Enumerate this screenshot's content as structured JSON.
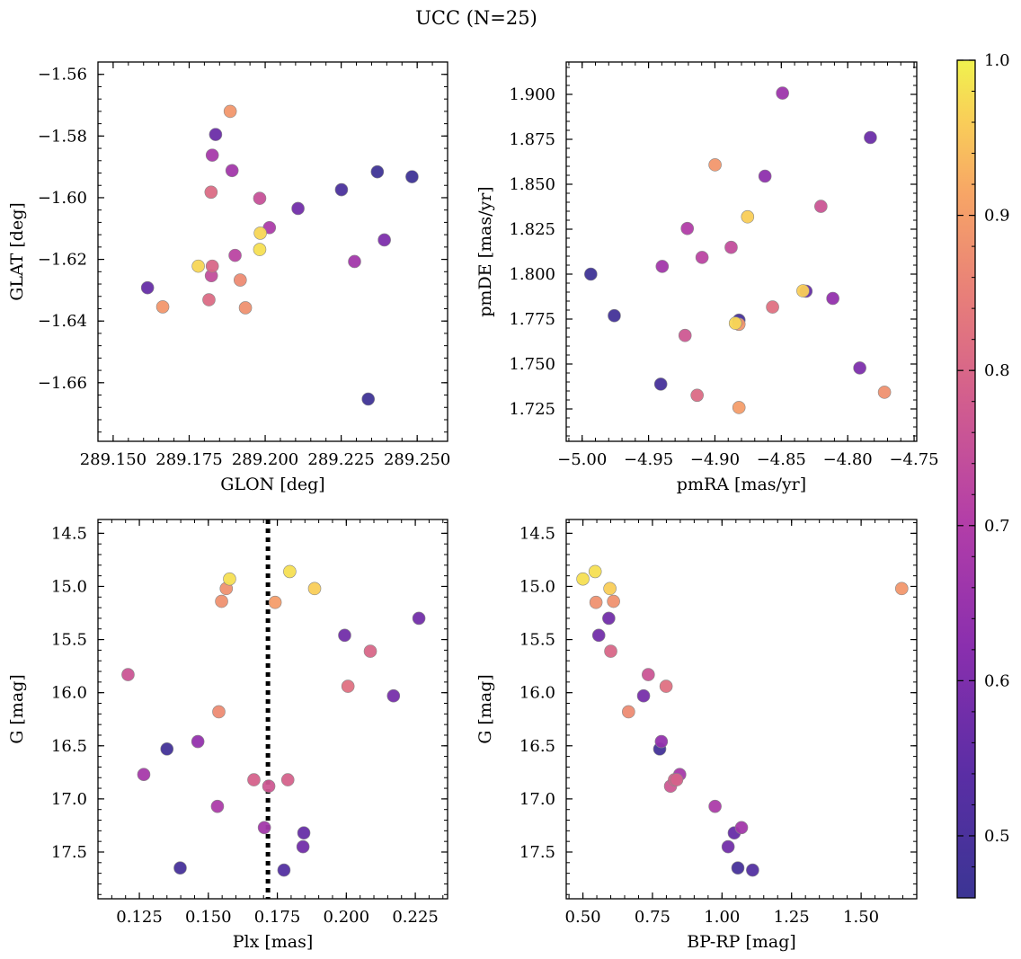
{
  "title": "UCC (N=25)",
  "colorbar": {
    "range": [
      0.46,
      1.0
    ],
    "ticks": [
      0.5,
      0.6,
      0.7,
      0.8,
      0.9,
      1.0
    ],
    "tick_labels": [
      "0.5",
      "0.6",
      "0.7",
      "0.8",
      "0.9",
      "1.0"
    ],
    "colormap": "plasma"
  },
  "chart_data": [
    {
      "type": "scatter",
      "xlabel": "GLON [deg]",
      "ylabel": "GLAT [deg]",
      "xlim": [
        289.145,
        289.26
      ],
      "ylim": [
        -1.679,
        -1.556
      ],
      "x_ticks": [
        289.15,
        289.175,
        289.2,
        289.225,
        289.25
      ],
      "x_tick_labels": [
        "289.150",
        "289.175",
        "289.200",
        "289.225",
        "289.250"
      ],
      "y_ticks": [
        -1.56,
        -1.58,
        -1.6,
        -1.62,
        -1.64,
        -1.66
      ],
      "y_tick_labels": [
        "−1.56",
        "−1.58",
        "−1.60",
        "−1.62",
        "−1.64",
        "−1.66"
      ],
      "points": [
        {
          "x": 289.1885,
          "y": -1.572,
          "c": 0.89
        },
        {
          "x": 289.1837,
          "y": -1.5795,
          "c": 0.57
        },
        {
          "x": 289.1826,
          "y": -1.5862,
          "c": 0.68
        },
        {
          "x": 289.1891,
          "y": -1.5912,
          "c": 0.67
        },
        {
          "x": 289.1822,
          "y": -1.5982,
          "c": 0.81
        },
        {
          "x": 289.1982,
          "y": -1.6002,
          "c": 0.75
        },
        {
          "x": 289.2108,
          "y": -1.6035,
          "c": 0.58
        },
        {
          "x": 289.2251,
          "y": -1.5974,
          "c": 0.5
        },
        {
          "x": 289.2369,
          "y": -1.5916,
          "c": 0.47
        },
        {
          "x": 289.2483,
          "y": -1.5932,
          "c": 0.47
        },
        {
          "x": 289.2014,
          "y": -1.6097,
          "c": 0.69
        },
        {
          "x": 289.1984,
          "y": -1.6115,
          "c": 0.97
        },
        {
          "x": 289.1982,
          "y": -1.6168,
          "c": 0.98
        },
        {
          "x": 289.2392,
          "y": -1.6137,
          "c": 0.6
        },
        {
          "x": 289.1901,
          "y": -1.6187,
          "c": 0.72
        },
        {
          "x": 289.2294,
          "y": -1.6207,
          "c": 0.67
        },
        {
          "x": 289.178,
          "y": -1.6222,
          "c": 0.97
        },
        {
          "x": 289.1826,
          "y": -1.6222,
          "c": 0.8
        },
        {
          "x": 289.1823,
          "y": -1.6253,
          "c": 0.74
        },
        {
          "x": 289.1918,
          "y": -1.6267,
          "c": 0.87
        },
        {
          "x": 289.1613,
          "y": -1.6292,
          "c": 0.56
        },
        {
          "x": 289.1815,
          "y": -1.6331,
          "c": 0.81
        },
        {
          "x": 289.1663,
          "y": -1.6354,
          "c": 0.89
        },
        {
          "x": 289.1935,
          "y": -1.6357,
          "c": 0.88
        },
        {
          "x": 289.2339,
          "y": -1.6653,
          "c": 0.47
        }
      ]
    },
    {
      "type": "scatter",
      "xlabel": "pmRA [mas/yr]",
      "ylabel": "pmDE [mas/yr]",
      "xlim": [
        -5.012,
        -4.748
      ],
      "ylim": [
        1.707,
        1.918
      ],
      "x_ticks": [
        -5.0,
        -4.95,
        -4.9,
        -4.85,
        -4.8,
        -4.75
      ],
      "x_tick_labels": [
        "−5.00",
        "−4.95",
        "−4.90",
        "−4.85",
        "−4.80",
        "−4.75"
      ],
      "y_ticks": [
        1.725,
        1.75,
        1.775,
        1.8,
        1.825,
        1.85,
        1.875,
        1.9
      ],
      "y_tick_labels": [
        "1.725",
        "1.750",
        "1.775",
        "1.800",
        "1.825",
        "1.850",
        "1.875",
        "1.900"
      ],
      "points": [
        {
          "x": -4.8491,
          "y": 1.9007,
          "c": 0.66
        },
        {
          "x": -4.7829,
          "y": 1.876,
          "c": 0.57
        },
        {
          "x": -4.8999,
          "y": 1.8608,
          "c": 0.89
        },
        {
          "x": -4.8623,
          "y": 1.8545,
          "c": 0.63
        },
        {
          "x": -4.8202,
          "y": 1.8377,
          "c": 0.76
        },
        {
          "x": -4.8754,
          "y": 1.8319,
          "c": 0.96
        },
        {
          "x": -4.9208,
          "y": 1.8254,
          "c": 0.7
        },
        {
          "x": -4.8878,
          "y": 1.8149,
          "c": 0.74
        },
        {
          "x": -4.9097,
          "y": 1.8093,
          "c": 0.72
        },
        {
          "x": -4.9397,
          "y": 1.8043,
          "c": 0.67
        },
        {
          "x": -4.9935,
          "y": 1.8,
          "c": 0.47
        },
        {
          "x": -4.8314,
          "y": 1.7905,
          "c": 0.56
        },
        {
          "x": -4.8337,
          "y": 1.7907,
          "c": 0.96
        },
        {
          "x": -4.8112,
          "y": 1.7865,
          "c": 0.64
        },
        {
          "x": -4.8566,
          "y": 1.7817,
          "c": 0.82
        },
        {
          "x": -4.9758,
          "y": 1.7769,
          "c": 0.48
        },
        {
          "x": -4.8819,
          "y": 1.7744,
          "c": 0.49
        },
        {
          "x": -4.8819,
          "y": 1.7721,
          "c": 0.89
        },
        {
          "x": -4.8846,
          "y": 1.7727,
          "c": 0.97
        },
        {
          "x": -4.9225,
          "y": 1.7659,
          "c": 0.77
        },
        {
          "x": -4.7909,
          "y": 1.7478,
          "c": 0.6
        },
        {
          "x": -4.9408,
          "y": 1.7388,
          "c": 0.49
        },
        {
          "x": -4.7723,
          "y": 1.7343,
          "c": 0.88
        },
        {
          "x": -4.9134,
          "y": 1.7326,
          "c": 0.81
        },
        {
          "x": -4.8819,
          "y": 1.7258,
          "c": 0.9
        }
      ]
    },
    {
      "type": "scatter",
      "xlabel": "Plx [mas]",
      "ylabel": "G [mag]",
      "xlim": [
        0.11,
        0.2367
      ],
      "ylim": [
        17.94,
        14.37
      ],
      "y_inverted": true,
      "x_ticks": [
        0.125,
        0.15,
        0.175,
        0.2,
        0.225
      ],
      "x_tick_labels": [
        "0.125",
        "0.150",
        "0.175",
        "0.200",
        "0.225"
      ],
      "y_ticks": [
        14.5,
        15.0,
        15.5,
        16.0,
        16.5,
        17.0,
        17.5
      ],
      "y_tick_labels": [
        "14.5",
        "15.0",
        "15.5",
        "16.0",
        "16.5",
        "17.0",
        "17.5"
      ],
      "vline": {
        "x": 0.1716,
        "style": "dotted",
        "color": "#000000"
      },
      "points": [
        {
          "x": 0.1795,
          "y": 14.86,
          "c": 0.98
        },
        {
          "x": 0.1577,
          "y": 14.93,
          "c": 0.98
        },
        {
          "x": 0.1885,
          "y": 15.02,
          "c": 0.96
        },
        {
          "x": 0.1565,
          "y": 15.02,
          "c": 0.88
        },
        {
          "x": 0.1548,
          "y": 15.14,
          "c": 0.88
        },
        {
          "x": 0.1742,
          "y": 15.15,
          "c": 0.9
        },
        {
          "x": 0.2263,
          "y": 15.3,
          "c": 0.58
        },
        {
          "x": 0.1994,
          "y": 15.46,
          "c": 0.58
        },
        {
          "x": 0.2087,
          "y": 15.61,
          "c": 0.8
        },
        {
          "x": 0.1209,
          "y": 15.83,
          "c": 0.76
        },
        {
          "x": 0.2006,
          "y": 15.94,
          "c": 0.82
        },
        {
          "x": 0.2171,
          "y": 16.03,
          "c": 0.59
        },
        {
          "x": 0.1538,
          "y": 16.18,
          "c": 0.87
        },
        {
          "x": 0.1462,
          "y": 16.46,
          "c": 0.64
        },
        {
          "x": 0.135,
          "y": 16.53,
          "c": 0.48
        },
        {
          "x": 0.1266,
          "y": 16.77,
          "c": 0.68
        },
        {
          "x": 0.1665,
          "y": 16.82,
          "c": 0.79
        },
        {
          "x": 0.1788,
          "y": 16.82,
          "c": 0.79
        },
        {
          "x": 0.1719,
          "y": 16.88,
          "c": 0.77
        },
        {
          "x": 0.1533,
          "y": 17.07,
          "c": 0.69
        },
        {
          "x": 0.1703,
          "y": 17.27,
          "c": 0.67
        },
        {
          "x": 0.1846,
          "y": 17.32,
          "c": 0.56
        },
        {
          "x": 0.1843,
          "y": 17.45,
          "c": 0.58
        },
        {
          "x": 0.1398,
          "y": 17.65,
          "c": 0.49
        },
        {
          "x": 0.1774,
          "y": 17.67,
          "c": 0.52
        }
      ]
    },
    {
      "type": "scatter",
      "xlabel": "BP-RP [mag]",
      "ylabel": "G [mag]",
      "xlim": [
        0.44,
        1.7
      ],
      "ylim": [
        17.94,
        14.37
      ],
      "y_inverted": true,
      "x_ticks": [
        0.5,
        0.75,
        1.0,
        1.25,
        1.5
      ],
      "x_tick_labels": [
        "0.50",
        "0.75",
        "1.00",
        "1.25",
        "1.50"
      ],
      "y_ticks": [
        14.5,
        15.0,
        15.5,
        16.0,
        16.5,
        17.0,
        17.5
      ],
      "y_tick_labels": [
        "14.5",
        "15.0",
        "15.5",
        "16.0",
        "16.5",
        "17.0",
        "17.5"
      ],
      "points": [
        {
          "x": 0.544,
          "y": 14.86,
          "c": 0.98
        },
        {
          "x": 0.5,
          "y": 14.93,
          "c": 0.98
        },
        {
          "x": 0.597,
          "y": 15.02,
          "c": 0.96
        },
        {
          "x": 1.646,
          "y": 15.02,
          "c": 0.89
        },
        {
          "x": 0.547,
          "y": 15.15,
          "c": 0.88
        },
        {
          "x": 0.61,
          "y": 15.14,
          "c": 0.88
        },
        {
          "x": 0.593,
          "y": 15.3,
          "c": 0.58
        },
        {
          "x": 0.557,
          "y": 15.46,
          "c": 0.58
        },
        {
          "x": 0.6,
          "y": 15.61,
          "c": 0.8
        },
        {
          "x": 0.735,
          "y": 15.83,
          "c": 0.76
        },
        {
          "x": 0.799,
          "y": 15.94,
          "c": 0.82
        },
        {
          "x": 0.718,
          "y": 16.03,
          "c": 0.59
        },
        {
          "x": 0.664,
          "y": 16.18,
          "c": 0.87
        },
        {
          "x": 0.782,
          "y": 16.46,
          "c": 0.64
        },
        {
          "x": 0.776,
          "y": 16.53,
          "c": 0.48
        },
        {
          "x": 0.848,
          "y": 16.77,
          "c": 0.68
        },
        {
          "x": 0.829,
          "y": 16.82,
          "c": 0.79
        },
        {
          "x": 0.815,
          "y": 16.88,
          "c": 0.77
        },
        {
          "x": 0.975,
          "y": 17.07,
          "c": 0.69
        },
        {
          "x": 1.07,
          "y": 17.27,
          "c": 0.67
        },
        {
          "x": 1.044,
          "y": 17.32,
          "c": 0.56
        },
        {
          "x": 1.022,
          "y": 17.45,
          "c": 0.58
        },
        {
          "x": 1.057,
          "y": 17.65,
          "c": 0.49
        },
        {
          "x": 1.11,
          "y": 17.67,
          "c": 0.52
        },
        {
          "x": 0.837,
          "y": 16.82,
          "c": 0.79
        }
      ]
    }
  ]
}
